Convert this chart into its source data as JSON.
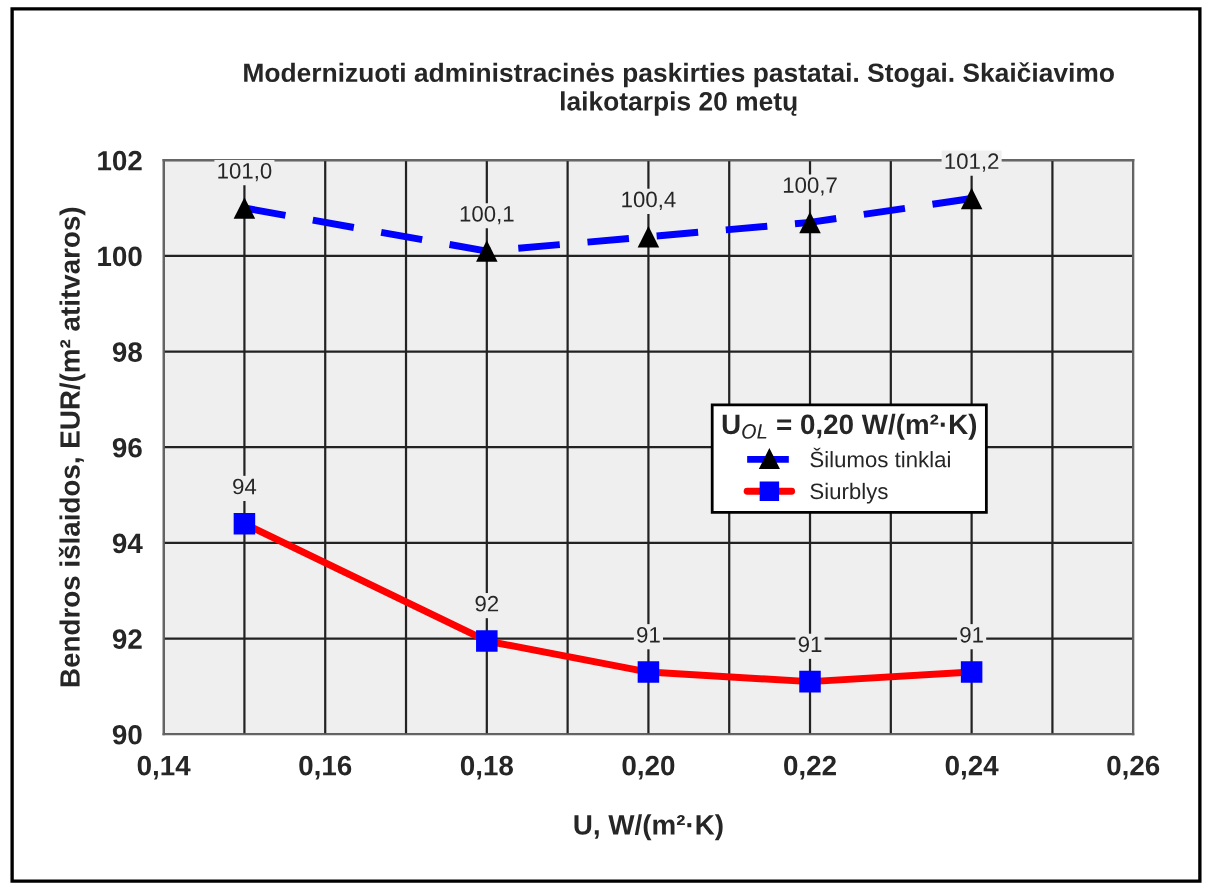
{
  "chart_data": {
    "type": "line",
    "title": "Modernizuoti administracinės paskirties pastatai. Stogai. Skaičiavimo laikotarpis 20 metų",
    "xlabel": "U, W/(m²·K)",
    "ylabel": "Bendros išlaidos, EUR/(m² atitvaros)",
    "legend_title": "U$_{OL}$ = 0,20 W/(m²·K)",
    "legend": "right",
    "x": [
      0.15,
      0.18,
      0.2,
      0.22,
      0.24
    ],
    "series": [
      {
        "name": "Šilumos tinklai",
        "color": "#0000ff",
        "colors": [
          "#000000",
          "#000000",
          "#000000",
          "#000000",
          "#000000"
        ],
        "marker": "triangle",
        "line_style": "dashed",
        "values": [
          101.0,
          100.1,
          100.4,
          100.7,
          101.2
        ],
        "value_labels": [
          "101,0",
          "100,1",
          "100,4",
          "100,7",
          "101,2"
        ]
      },
      {
        "name": "Siurblys",
        "color": "#ff0000",
        "colors": [
          "#0000ff",
          "#0000ff",
          "#0000ff",
          "#0000ff",
          "#0000ff"
        ],
        "marker": "square",
        "line_style": "solid",
        "values": [
          94.4,
          91.95,
          91.3,
          91.1,
          91.3
        ],
        "value_labels": [
          "94",
          "92",
          "91",
          "91",
          "91"
        ]
      }
    ],
    "xlim": [
      0.14,
      0.26
    ],
    "xticks": [
      {
        "value": 0.14,
        "label": "0,14"
      },
      {
        "value": 0.15,
        "label": null
      },
      {
        "value": 0.16,
        "label": "0,16"
      },
      {
        "value": 0.17,
        "label": null
      },
      {
        "value": 0.18,
        "label": "0,18"
      },
      {
        "value": 0.19,
        "label": null
      },
      {
        "value": 0.2,
        "label": "0,20"
      },
      {
        "value": 0.21,
        "label": null
      },
      {
        "value": 0.22,
        "label": "0,22"
      },
      {
        "value": 0.23,
        "label": null
      },
      {
        "value": 0.24,
        "label": "0,24"
      },
      {
        "value": 0.25,
        "label": null
      },
      {
        "value": 0.26,
        "label": "0,26"
      }
    ],
    "ylim": [
      90,
      102
    ],
    "yticks": [
      90,
      92,
      94,
      96,
      98,
      100,
      102
    ],
    "grid": true
  }
}
